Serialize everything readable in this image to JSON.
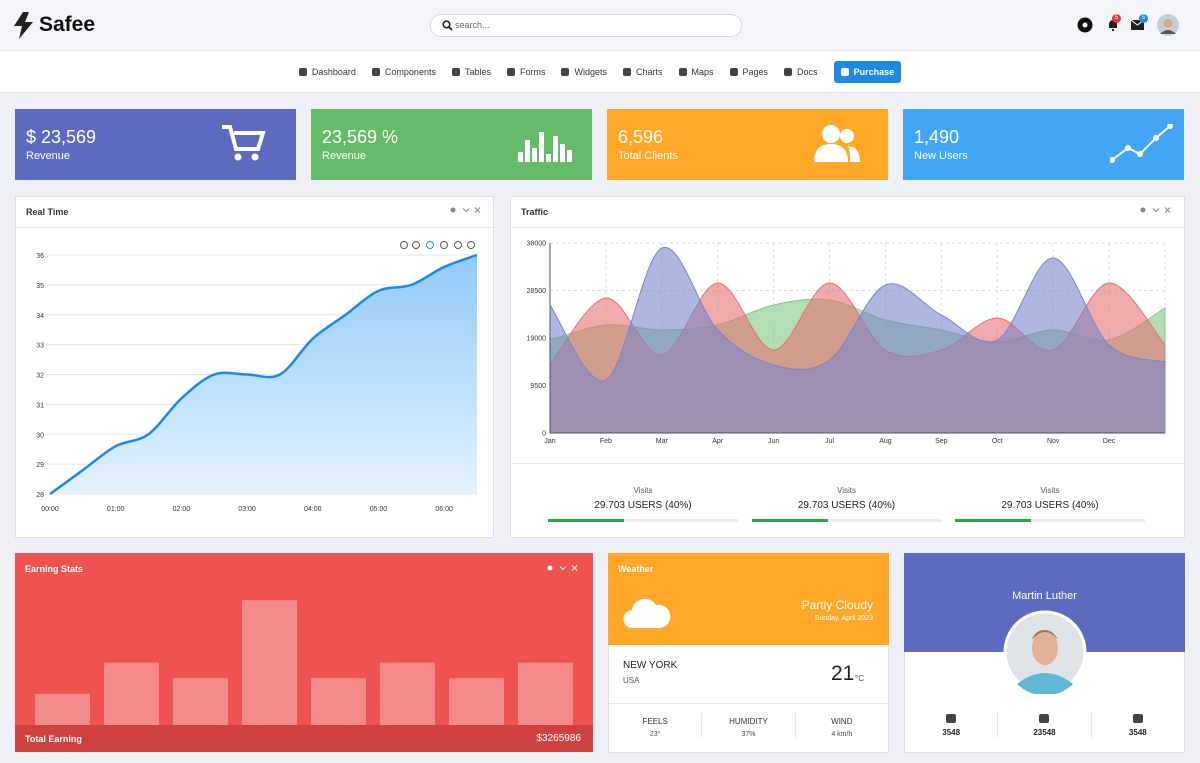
{
  "header": {
    "brand": "Safee",
    "search_placeholder": "search...",
    "notifications": "5",
    "messages": "5"
  },
  "nav": [
    "Dashboard",
    "Components",
    "Tables",
    "Forms",
    "Widgets",
    "Charts",
    "Maps",
    "Pages",
    "Docs",
    "Purchase"
  ],
  "stats": [
    {
      "value": "$ 23,569",
      "label": "Revenue",
      "color": "#5c6bc0"
    },
    {
      "value": "23,569 %",
      "label": "Revenue",
      "color": "#66bb6a"
    },
    {
      "value": "6,596",
      "label": "Total Clients",
      "color": "#ffa726"
    },
    {
      "value": "1,490",
      "label": "New Users",
      "color": "#42a5f5"
    }
  ],
  "chart_data": [
    {
      "type": "line",
      "title": "Real Time",
      "categories": [
        "00:00",
        null,
        "01:00",
        null,
        "02:00",
        null,
        "03:00",
        null,
        "04:00",
        null,
        "05:00",
        null,
        "06:00",
        null
      ],
      "values": [
        28,
        28.8,
        29.6,
        30,
        31.2,
        32,
        32,
        32,
        33.2,
        34,
        34.8,
        35,
        35.6,
        36
      ],
      "color": "#1e88e5",
      "ylim": [
        28,
        36
      ],
      "yticks": [
        28,
        29,
        30,
        31,
        32,
        33,
        34,
        35,
        36
      ],
      "grid": true
    },
    {
      "type": "area",
      "title": "Traffic",
      "categories": [
        "Jan",
        "Feb",
        "Mar",
        "Apr",
        "Jun",
        "Jul",
        "Aug",
        "Sep",
        "Oct",
        "Nov",
        "Dec",
        null
      ],
      "series": [
        {
          "color": "#81c784",
          "values": [
            18600,
            21600,
            20600,
            21600,
            25600,
            26600,
            22600,
            20600,
            18200,
            20600,
            18600,
            25000
          ]
        },
        {
          "color": "#e57373",
          "values": [
            13600,
            27000,
            15600,
            30000,
            16600,
            30000,
            16600,
            16600,
            23000,
            16600,
            30000,
            17600
          ]
        },
        {
          "color": "#7986cb",
          "values": [
            25600,
            10600,
            37000,
            20600,
            13600,
            14600,
            29600,
            23600,
            18600,
            35000,
            17600,
            14200
          ]
        }
      ],
      "ylim": [
        0,
        38000
      ],
      "yticks": [
        0,
        9500,
        19000,
        28500,
        38000
      ],
      "grid": true
    },
    {
      "type": "bar",
      "title": "Earning Stats",
      "values": [
        2,
        4,
        3,
        8,
        3,
        4,
        3,
        4
      ],
      "color": "#f48a8a",
      "ylim": [
        0,
        10
      ],
      "footer_label": "Total Earning",
      "total": "$3265986"
    }
  ],
  "traffic_visits": [
    {
      "label": "Visits",
      "value": "29.703 USERS (40%)",
      "progress": 40
    },
    {
      "label": "Visits",
      "value": "29.703 USERS (40%)",
      "progress": 40
    },
    {
      "label": "Visits",
      "value": "29.703 USERS (40%)",
      "progress": 40
    }
  ],
  "weather": {
    "title": "Weather",
    "condition": "Partly Cloudy",
    "date": "Sunday, April 2023",
    "city": "NEW YORK",
    "country": "USA",
    "temp": "21",
    "unit": "°C",
    "stats": [
      {
        "label": "FEELS",
        "value": "23°"
      },
      {
        "label": "HUMIDITY",
        "value": "37%"
      },
      {
        "label": "WIND",
        "value": "4 km/h"
      }
    ]
  },
  "profile": {
    "name": "Martin Luther",
    "stats": [
      "3548",
      "23548",
      "3548"
    ]
  }
}
